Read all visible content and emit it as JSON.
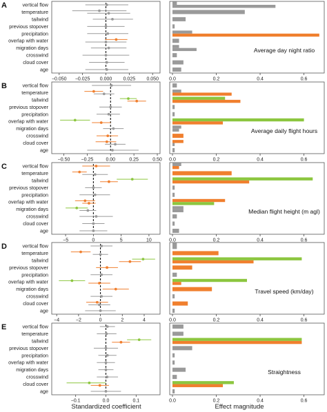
{
  "chart_data": {
    "type": "multi-panel coefficient and bar chart",
    "xlabel_left": "Standardized coefficient",
    "xlabel_right": "Effect magnitude",
    "colors": {
      "significant_orange": "#f07f2e",
      "significant_green": "#8cc63f",
      "nonsignificant_grey": "#9a9a9a"
    },
    "categories": [
      "vertical flow",
      "temperature",
      "tailwind",
      "previous stopover",
      "precipitation",
      "overlap with water",
      "migration days",
      "crosswind",
      "cloud cover",
      "age"
    ],
    "right_ticks": [
      "0.0",
      "0.2",
      "0.4",
      "0.6"
    ],
    "right_xlim": [
      0,
      0.68
    ],
    "panels": [
      {
        "letter": "A",
        "metric": "Average day night ratio",
        "left_xlim": [
          -0.055,
          0.055
        ],
        "left_ticks": [
          -0.05,
          -0.025,
          0,
          0.025,
          0.05
        ],
        "left_tick_labels": [
          "−0.050",
          "−0.025",
          "0.000",
          "0.025",
          "0.050"
        ],
        "coefficients": [
          [
            [
              0.001,
              -0.022,
              0.024,
              "grey"
            ]
          ],
          [
            [
              -0.007,
              -0.036,
              0.022,
              "grey"
            ],
            [
              0.003,
              -0.02,
              0.026,
              "grey"
            ]
          ],
          [
            [
              0.007,
              -0.014,
              0.029,
              "grey"
            ]
          ],
          [
            [
              0.0,
              -0.02,
              0.02,
              "grey"
            ]
          ],
          [
            [
              0.002,
              -0.02,
              0.024,
              "grey"
            ]
          ],
          [
            [
              0.011,
              -0.001,
              0.023,
              "orange"
            ],
            [
              0.0,
              -0.022,
              0.022,
              "grey"
            ]
          ],
          [
            [
              0.003,
              -0.016,
              0.022,
              "grey"
            ]
          ],
          [
            [
              0.0,
              -0.025,
              0.025,
              "grey"
            ]
          ],
          [
            [
              0.001,
              -0.018,
              0.02,
              "grey"
            ]
          ],
          [
            [
              0.001,
              -0.022,
              0.024,
              "grey"
            ]
          ]
        ],
        "magnitudes": [
          [
            [
              0.02,
              "grey"
            ],
            [
              0.47,
              "grey"
            ]
          ],
          [
            [
              0.33,
              "grey"
            ]
          ],
          [
            [
              0.06,
              "grey"
            ]
          ],
          [
            [
              0.01,
              "grey"
            ]
          ],
          [
            [
              0.09,
              "grey"
            ],
            [
              0.67,
              "orange"
            ]
          ],
          [
            [
              0.03,
              "grey"
            ]
          ],
          [
            [
              0.03,
              "grey"
            ],
            [
              0.11,
              "grey"
            ]
          ],
          [
            [
              0.02,
              "grey"
            ]
          ],
          [
            [
              0.05,
              "grey"
            ]
          ],
          [
            [
              0.04,
              "grey"
            ]
          ]
        ]
      },
      {
        "letter": "B",
        "metric": "Average daily flight hours",
        "left_xlim": [
          -0.6,
          0.5
        ],
        "left_ticks": [
          -0.5,
          -0.25,
          0,
          0.25,
          0.5
        ],
        "left_tick_labels": [
          "−0.50",
          "−0.25",
          "0.00",
          "0.25",
          "0.50"
        ],
        "coefficients": [
          [
            [
              0.01,
              -0.2,
              0.22,
              "grey"
            ]
          ],
          [
            [
              -0.18,
              -0.28,
              -0.08,
              "orange"
            ],
            [
              -0.07,
              -0.18,
              0.04,
              "grey"
            ]
          ],
          [
            [
              0.19,
              0.1,
              0.28,
              "green"
            ],
            [
              0.28,
              0.18,
              0.38,
              "orange"
            ]
          ],
          [
            [
              0.0,
              -0.12,
              0.12,
              "grey"
            ]
          ],
          [
            [
              -0.02,
              -0.15,
              0.1,
              "grey"
            ]
          ],
          [
            [
              -0.38,
              -0.54,
              -0.22,
              "green"
            ],
            [
              -0.1,
              -0.2,
              0.0,
              "orange"
            ]
          ],
          [
            [
              0.03,
              -0.08,
              0.14,
              "grey"
            ]
          ],
          [
            [
              -0.03,
              -0.15,
              0.08,
              "orange"
            ]
          ],
          [
            [
              -0.04,
              -0.16,
              0.06,
              "orange"
            ],
            [
              0.05,
              -0.06,
              0.16,
              "grey"
            ]
          ],
          [
            [
              0.02,
              -0.25,
              0.3,
              "grey"
            ]
          ]
        ],
        "magnitudes": [
          [
            [
              0.02,
              "grey"
            ]
          ],
          [
            [
              0.04,
              "grey"
            ],
            [
              0.27,
              "orange"
            ]
          ],
          [
            [
              0.24,
              "green"
            ],
            [
              0.31,
              "orange"
            ]
          ],
          [
            [
              0.01,
              "grey"
            ]
          ],
          [
            [
              0.01,
              "grey"
            ]
          ],
          [
            [
              0.6,
              "green"
            ],
            [
              0.23,
              "orange"
            ]
          ],
          [
            [
              0.04,
              "grey"
            ],
            [
              0.03,
              "grey"
            ]
          ],
          [
            [
              0.05,
              "orange"
            ]
          ],
          [
            [
              0.05,
              "orange"
            ],
            [
              0.01,
              "grey"
            ]
          ],
          [
            [
              0.01,
              "grey"
            ]
          ]
        ]
      },
      {
        "letter": "C",
        "metric": "Median flight height (m agl)",
        "left_xlim": [
          -7,
          11.5
        ],
        "left_ticks": [
          -5,
          0,
          5,
          10
        ],
        "left_tick_labels": [
          "−5",
          "0",
          "5",
          "10"
        ],
        "coefficients": [
          [
            [
              0.5,
              -2.0,
              3.0,
              "orange"
            ]
          ],
          [
            [
              -2.5,
              -3.8,
              -1.2,
              "orange"
            ],
            [
              0.3,
              -2.0,
              2.6,
              "grey"
            ]
          ],
          [
            [
              7.0,
              4.2,
              9.8,
              "green"
            ],
            [
              2.8,
              1.2,
              4.4,
              "orange"
            ]
          ],
          [
            [
              0.0,
              -1.5,
              1.5,
              "grey"
            ]
          ],
          [
            [
              0.3,
              -2.5,
              3.0,
              "grey"
            ]
          ],
          [
            [
              -1.5,
              -3.3,
              0.3,
              "orange"
            ],
            [
              -0.8,
              -2.0,
              0.4,
              "orange"
            ]
          ],
          [
            [
              -3.0,
              -5.0,
              -1.0,
              "green"
            ],
            [
              -1.0,
              -2.5,
              0.5,
              "grey"
            ]
          ],
          [
            [
              0.5,
              -2.5,
              3.5,
              "grey"
            ]
          ],
          [
            [
              0.0,
              -2.0,
              2.0,
              "grey"
            ]
          ],
          [
            [
              0.0,
              -2.5,
              2.5,
              "grey"
            ]
          ]
        ],
        "magnitudes": [
          [
            [
              0.04,
              "grey"
            ],
            [
              0.03,
              "orange"
            ]
          ],
          [
            [
              0.27,
              "orange"
            ]
          ],
          [
            [
              0.64,
              "green"
            ],
            [
              0.35,
              "orange"
            ]
          ],
          [
            [
              0.01,
              "grey"
            ]
          ],
          [
            [
              0.01,
              "grey"
            ]
          ],
          [
            [
              0.24,
              "orange"
            ],
            [
              0.19,
              "green"
            ]
          ],
          [
            [
              0.05,
              "grey"
            ],
            [
              0.05,
              "grey"
            ]
          ],
          [
            [
              0.02,
              "grey"
            ]
          ],
          [
            [
              0.01,
              "grey"
            ]
          ],
          [
            [
              0.03,
              "grey"
            ]
          ]
        ]
      },
      {
        "letter": "D",
        "metric": "Travel speed (km/day)",
        "left_xlim": [
          -4.2,
          5.2
        ],
        "left_ticks": [
          -4,
          -2,
          0,
          2,
          4
        ],
        "left_tick_labels": [
          "−4",
          "−2",
          "0",
          "2",
          "4"
        ],
        "coefficients": [
          [
            [
              0.1,
              -0.9,
              1.1,
              "grey"
            ]
          ],
          [
            [
              -1.8,
              -2.7,
              -0.9,
              "orange"
            ],
            [
              0.0,
              -0.7,
              0.7,
              "grey"
            ]
          ],
          [
            [
              3.9,
              2.9,
              5.0,
              "green"
            ],
            [
              2.7,
              1.7,
              3.7,
              "orange"
            ]
          ],
          [
            [
              0.6,
              -0.4,
              1.6,
              "orange"
            ]
          ],
          [
            [
              0.1,
              -0.9,
              1.1,
              "grey"
            ]
          ],
          [
            [
              -2.6,
              -3.8,
              -1.4,
              "green"
            ],
            [
              -0.1,
              -1.1,
              0.9,
              "orange"
            ]
          ],
          [
            [
              1.4,
              0.2,
              2.6,
              "orange"
            ]
          ],
          [
            [
              0.1,
              -0.9,
              1.1,
              "grey"
            ]
          ],
          [
            [
              -0.3,
              -1.3,
              0.7,
              "orange"
            ],
            [
              -0.1,
              -1.1,
              0.9,
              "grey"
            ]
          ],
          [
            [
              0.0,
              -1.4,
              1.4,
              "grey"
            ]
          ]
        ],
        "magnitudes": [
          [
            [
              0.02,
              "grey"
            ],
            [
              0.02,
              "grey"
            ]
          ],
          [
            [
              0.21,
              "orange"
            ]
          ],
          [
            [
              0.59,
              "green"
            ],
            [
              0.37,
              "orange"
            ]
          ],
          [
            [
              0.09,
              "orange"
            ]
          ],
          [
            [
              0.02,
              "grey"
            ]
          ],
          [
            [
              0.34,
              "green"
            ],
            [
              0.04,
              "orange"
            ]
          ],
          [
            [
              0.18,
              "orange"
            ]
          ],
          [
            [
              0.01,
              "grey"
            ]
          ],
          [
            [
              0.07,
              "orange"
            ]
          ],
          [
            [
              0.01,
              "grey"
            ]
          ]
        ]
      },
      {
        "letter": "E",
        "metric": "Straightness",
        "left_xlim": [
          -0.17,
          0.17
        ],
        "left_ticks": [
          -0.1,
          0,
          0.1
        ],
        "left_tick_labels": [
          "−0.1",
          "0.0",
          "0.1"
        ],
        "coefficients": [
          [
            [
              0.005,
              -0.02,
              0.03,
              "grey"
            ]
          ],
          [
            [
              0.002,
              -0.03,
              0.035,
              "grey"
            ]
          ],
          [
            [
              0.11,
              0.07,
              0.15,
              "green"
            ],
            [
              0.05,
              0.02,
              0.08,
              "orange"
            ]
          ],
          [
            [
              0.0,
              -0.04,
              0.04,
              "grey"
            ]
          ],
          [
            [
              0.005,
              -0.025,
              0.035,
              "grey"
            ]
          ],
          [
            [
              0.0,
              -0.03,
              0.03,
              "grey"
            ]
          ],
          [
            [
              0.0,
              -0.025,
              0.025,
              "grey"
            ]
          ],
          [
            [
              0.004,
              -0.03,
              0.04,
              "grey"
            ]
          ],
          [
            [
              -0.055,
              -0.13,
              0.0,
              "green"
            ],
            [
              -0.02,
              -0.05,
              0.01,
              "orange"
            ]
          ],
          [
            [
              0.0,
              -0.05,
              0.05,
              "grey"
            ]
          ]
        ],
        "magnitudes": [
          [
            [
              0.05,
              "grey"
            ]
          ],
          [
            [
              0.05,
              "grey"
            ]
          ],
          [
            [
              0.59,
              "green"
            ],
            [
              0.59,
              "orange"
            ]
          ],
          [
            [
              0.09,
              "grey"
            ]
          ],
          [
            [
              0.01,
              "grey"
            ]
          ],
          [
            [
              0.01,
              "grey"
            ]
          ],
          [
            [
              0.06,
              "grey"
            ]
          ],
          [
            [
              0.02,
              "grey"
            ]
          ],
          [
            [
              0.28,
              "green"
            ],
            [
              0.23,
              "orange"
            ]
          ],
          [
            [
              0.01,
              "grey"
            ]
          ]
        ]
      }
    ]
  }
}
